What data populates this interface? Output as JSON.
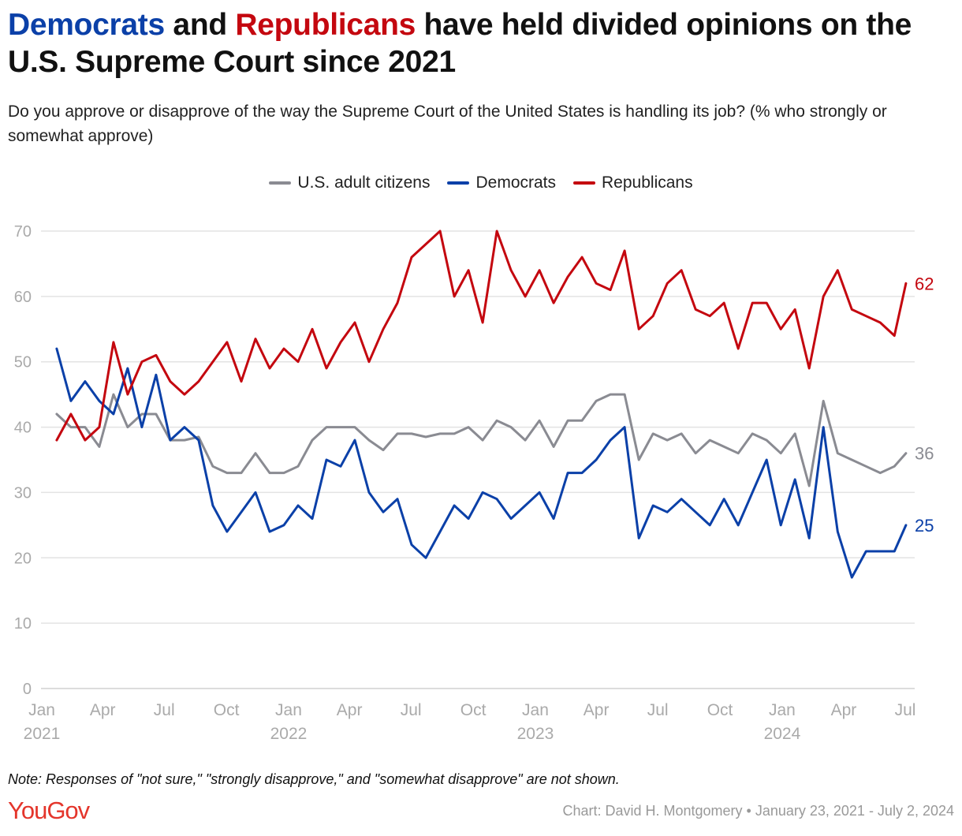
{
  "title": {
    "part1": "Democrats",
    "part2": " and ",
    "part3": "Republicans",
    "part4": " have held divided opinions on the U.S. Supreme Court since 2021"
  },
  "subtitle": "Do you approve or disapprove of the way the Supreme Court of the United States is handling its job? (% who strongly or somewhat approve)",
  "note": "Note: Responses of \"not sure,\" \"strongly disapprove,\" and \"somewhat disapprove\" are not shown.",
  "logo": "YouGov",
  "credit": "Chart: David H. Montgomery • January 23, 2021 - July 2, 2024",
  "colors": {
    "democrats": "#0b40a8",
    "republicans": "#c4070f",
    "adults": "#8a8b92",
    "grid": "#e3e3e3",
    "tick": "#aaaaaa"
  },
  "chart_data": {
    "type": "line",
    "title": "Democrats and Republicans have held divided opinions on the U.S. Supreme Court since 2021",
    "ylim": [
      0,
      70
    ],
    "xlim": [
      "2021-01-01",
      "2024-07-01"
    ],
    "grid": true,
    "legend_position": "top",
    "y_ticks": [
      "0",
      "10",
      "20",
      "30",
      "40",
      "50",
      "60",
      "70"
    ],
    "x_ticks": [
      {
        "date": "2021-01-01",
        "label": "Jan",
        "year": "2021"
      },
      {
        "date": "2021-04-01",
        "label": "Apr",
        "year": ""
      },
      {
        "date": "2021-07-01",
        "label": "Jul",
        "year": ""
      },
      {
        "date": "2021-10-01",
        "label": "Oct",
        "year": ""
      },
      {
        "date": "2022-01-01",
        "label": "Jan",
        "year": "2022"
      },
      {
        "date": "2022-04-01",
        "label": "Apr",
        "year": ""
      },
      {
        "date": "2022-07-01",
        "label": "Jul",
        "year": ""
      },
      {
        "date": "2022-10-01",
        "label": "Oct",
        "year": ""
      },
      {
        "date": "2023-01-01",
        "label": "Jan",
        "year": "2023"
      },
      {
        "date": "2023-04-01",
        "label": "Apr",
        "year": ""
      },
      {
        "date": "2023-07-01",
        "label": "Jul",
        "year": ""
      },
      {
        "date": "2023-10-01",
        "label": "Oct",
        "year": ""
      },
      {
        "date": "2024-01-01",
        "label": "Jan",
        "year": "2024"
      },
      {
        "date": "2024-04-01",
        "label": "Apr",
        "year": ""
      },
      {
        "date": "2024-07-01",
        "label": "Jul",
        "year": ""
      }
    ],
    "x": [
      "2021-01-23",
      "2021-02-13",
      "2021-03-06",
      "2021-03-27",
      "2021-04-17",
      "2021-05-08",
      "2021-05-29",
      "2021-06-19",
      "2021-07-10",
      "2021-07-31",
      "2021-08-21",
      "2021-09-11",
      "2021-10-02",
      "2021-10-23",
      "2021-11-13",
      "2021-12-04",
      "2021-12-25",
      "2022-01-15",
      "2022-02-05",
      "2022-02-26",
      "2022-03-19",
      "2022-04-09",
      "2022-04-30",
      "2022-05-21",
      "2022-06-11",
      "2022-07-02",
      "2022-07-23",
      "2022-08-13",
      "2022-09-03",
      "2022-09-24",
      "2022-10-15",
      "2022-11-05",
      "2022-11-26",
      "2022-12-17",
      "2023-01-07",
      "2023-01-28",
      "2023-02-18",
      "2023-03-11",
      "2023-04-01",
      "2023-04-22",
      "2023-05-13",
      "2023-06-03",
      "2023-06-24",
      "2023-07-15",
      "2023-08-05",
      "2023-08-26",
      "2023-09-16",
      "2023-10-07",
      "2023-10-28",
      "2023-11-18",
      "2023-12-09",
      "2023-12-30",
      "2024-01-20",
      "2024-02-10",
      "2024-03-02",
      "2024-03-23",
      "2024-04-13",
      "2024-05-04",
      "2024-05-25",
      "2024-06-15",
      "2024-07-02"
    ],
    "series": [
      {
        "name": "U.S. adult citizens",
        "key": "adults",
        "end_label": "36",
        "values": [
          42,
          40,
          40,
          37,
          45,
          40,
          42,
          42,
          38,
          38,
          38.5,
          34,
          33,
          33,
          36,
          33,
          33,
          34,
          38,
          40,
          40,
          40,
          38,
          36.5,
          39,
          39,
          38.5,
          39,
          39,
          40,
          38,
          41,
          40,
          38,
          41,
          37,
          41,
          41,
          44,
          45,
          45,
          35,
          39,
          38,
          39,
          36,
          38,
          37,
          36,
          39,
          38,
          36,
          39,
          31,
          44,
          36,
          35,
          34,
          33,
          34,
          36
        ]
      },
      {
        "name": "Democrats",
        "key": "democrats",
        "end_label": "25",
        "values": [
          52,
          44,
          47,
          44,
          42,
          49,
          40,
          48,
          38,
          40,
          38,
          28,
          24,
          27,
          30,
          24,
          25,
          28,
          26,
          35,
          34,
          38,
          30,
          27,
          29,
          22,
          20,
          24,
          28,
          26,
          30,
          29,
          26,
          28,
          30,
          26,
          33,
          33,
          35,
          38,
          40,
          23,
          28,
          27,
          29,
          27,
          25,
          29,
          25,
          30,
          35,
          25,
          32,
          23,
          40,
          24,
          17,
          21,
          21,
          21,
          25
        ]
      },
      {
        "name": "Republicans",
        "key": "republicans",
        "end_label": "62",
        "values": [
          38,
          42,
          38,
          40,
          53,
          45,
          50,
          51,
          47,
          45,
          47,
          50,
          53,
          47,
          53.5,
          49,
          52,
          50,
          55,
          49,
          53,
          56,
          50,
          55,
          59,
          66,
          68,
          70,
          60,
          64,
          56,
          70,
          64,
          60,
          64,
          59,
          63,
          66,
          62,
          61,
          67,
          55,
          57,
          62,
          64,
          58,
          57,
          59,
          52,
          59,
          59,
          55,
          58,
          49,
          60,
          64,
          58,
          57,
          56,
          54,
          62
        ]
      }
    ]
  }
}
